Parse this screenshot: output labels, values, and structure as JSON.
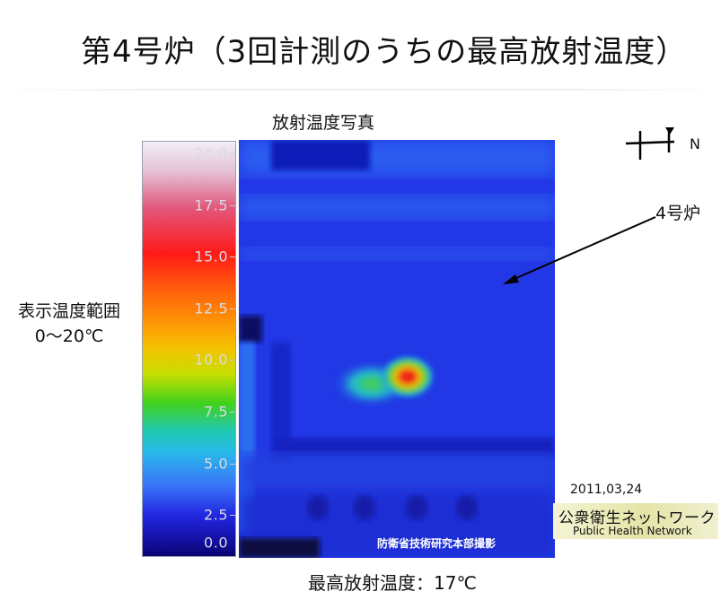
{
  "title": "第4号炉（3回計測のうちの最高放射温度）",
  "photo_caption": "放射温度写真",
  "range_label": {
    "line1": "表示温度範囲",
    "line2": "0〜20℃"
  },
  "scale": {
    "ticks": [
      "20.0",
      "17.5",
      "15.0",
      "12.5",
      "10.0",
      "7.5",
      "5.0",
      "2.5",
      "0.0"
    ]
  },
  "credit": "防衛省技術研究本部撮影",
  "max_temp": "最高放射温度：17℃",
  "reactor_label": "4号炉",
  "compass_label": "N",
  "date": "2011,03,24",
  "org": {
    "jp": "公衆衛生ネットワーク",
    "en": "Public Health Network"
  },
  "colors": {
    "thermal_base": "#2238e6",
    "hotspot": "#e8201c",
    "arrow": "#000000"
  }
}
